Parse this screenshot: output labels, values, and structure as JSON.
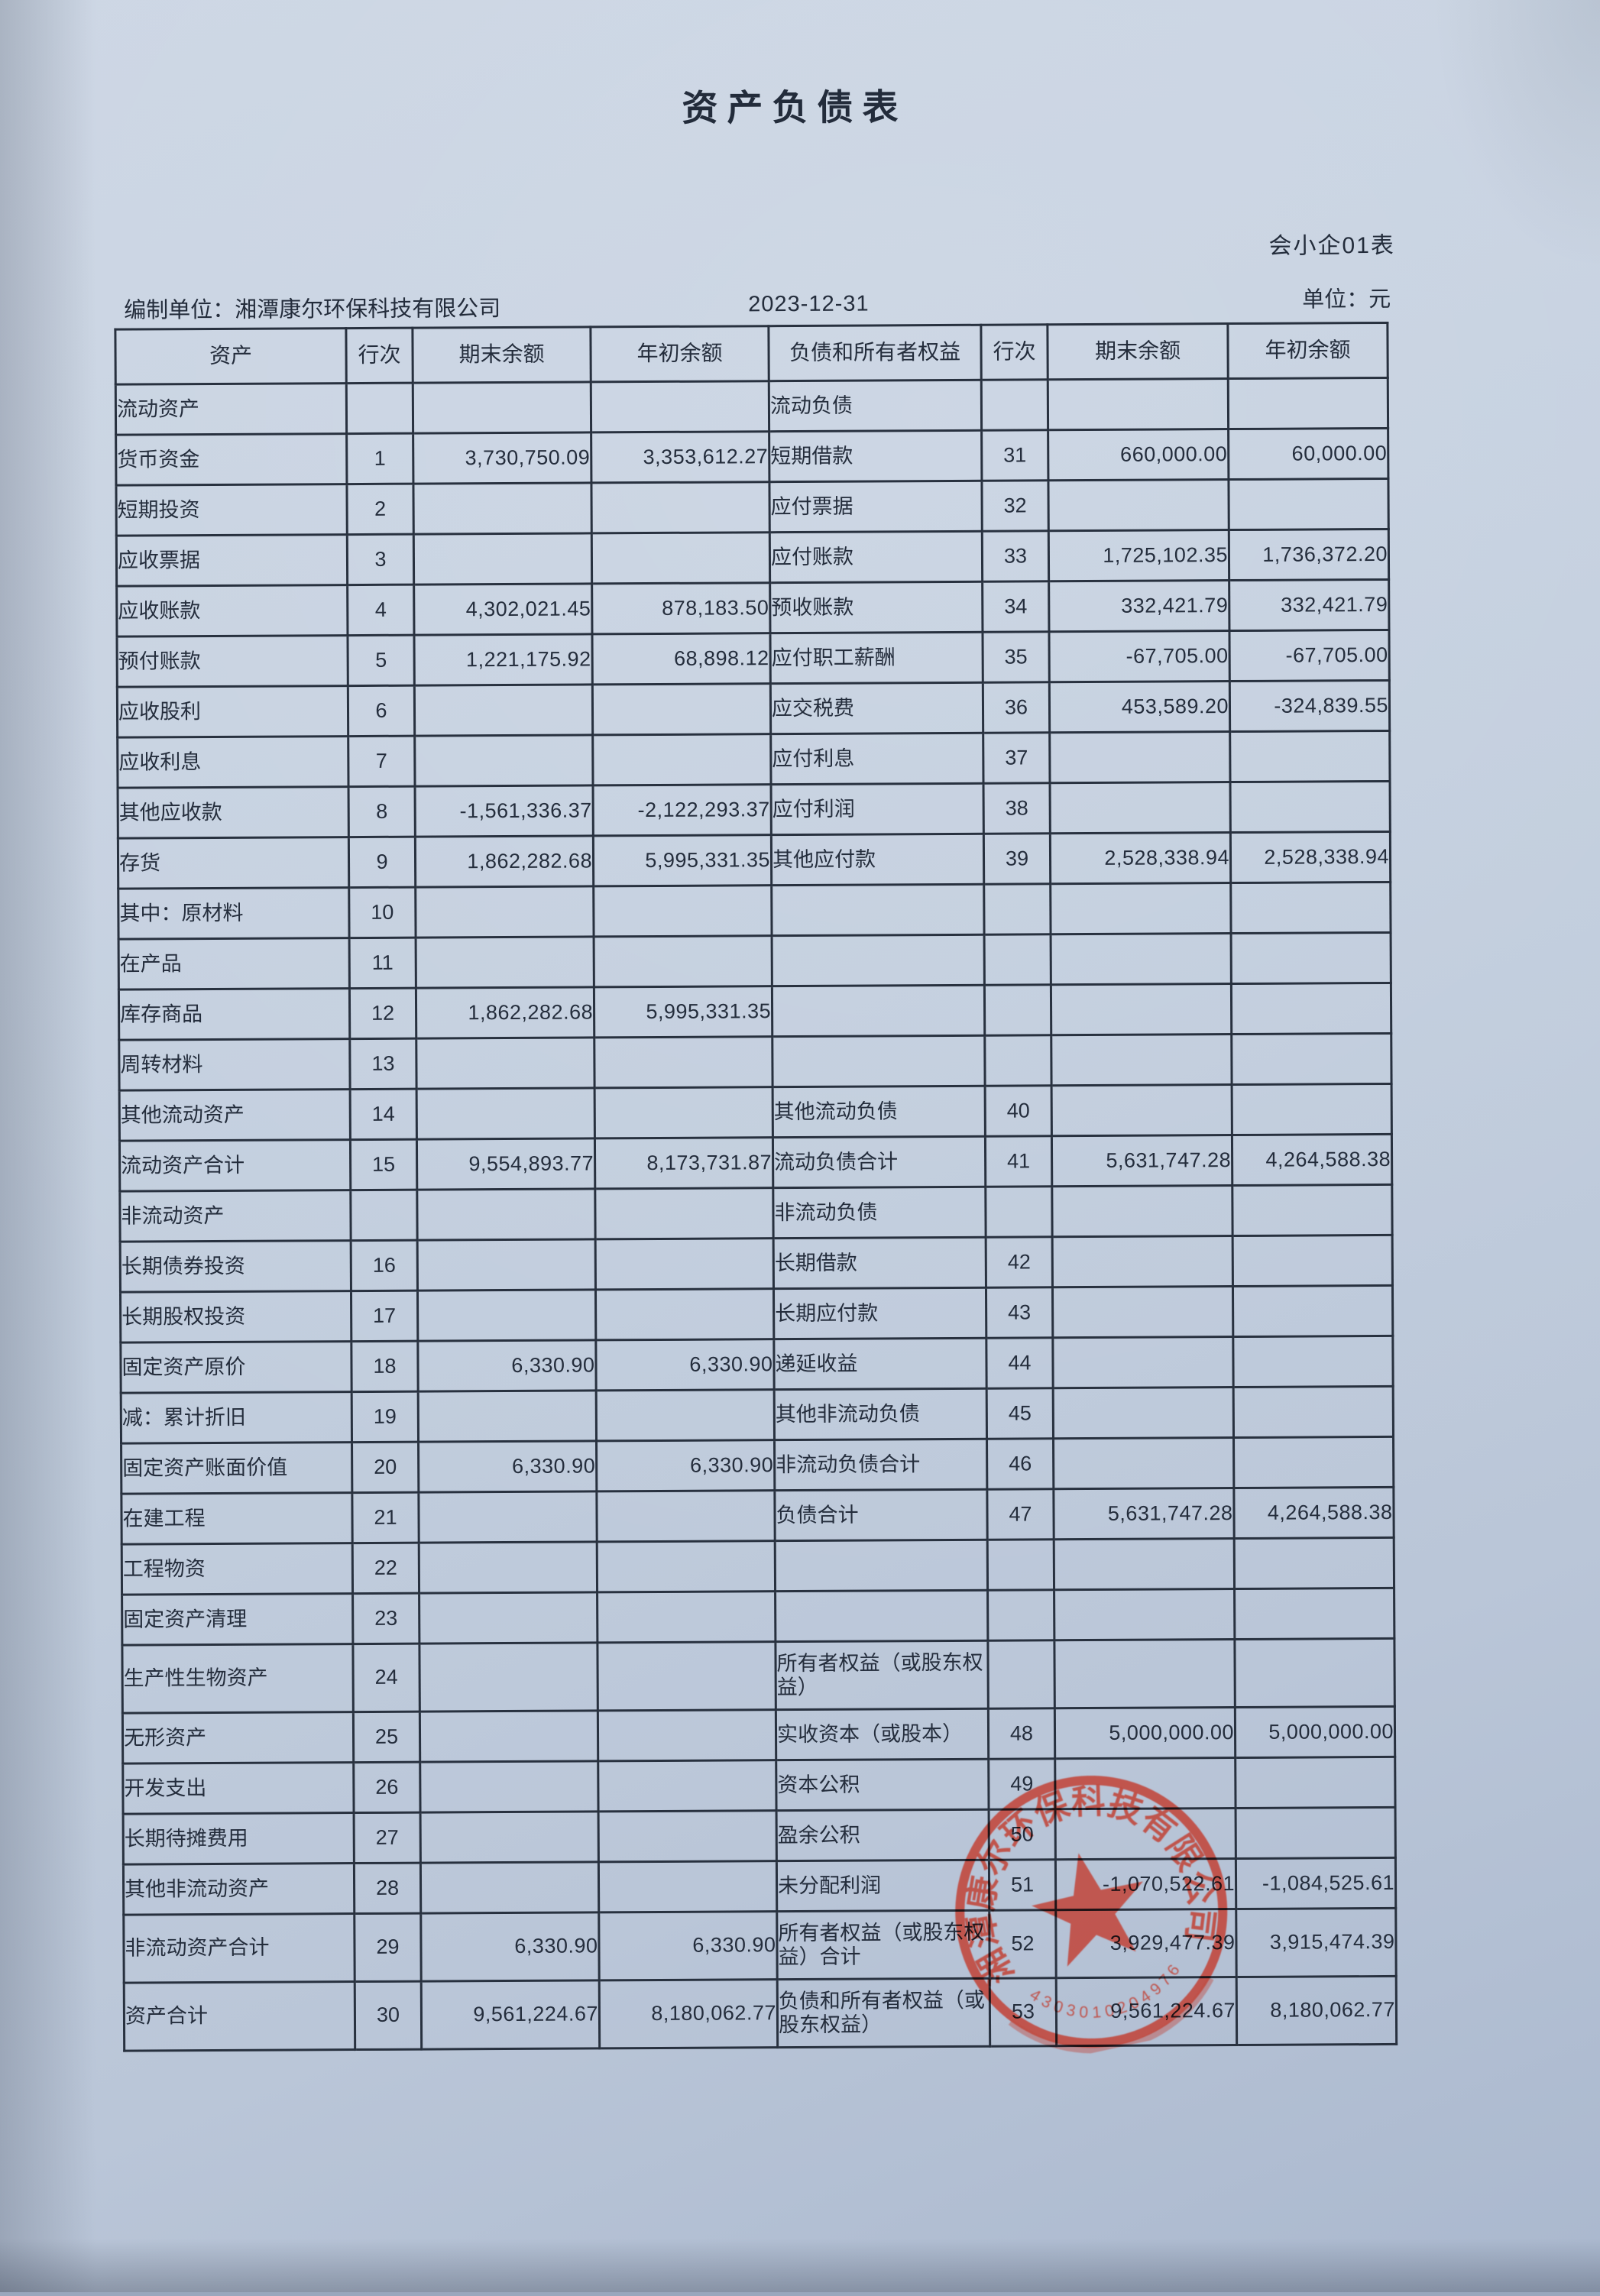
{
  "page": {
    "title": "资产负债表",
    "form_code": "会小企01表",
    "prepared_by": "编制单位：湘潭康尔环保科技有限公司",
    "date": "2023-12-31",
    "unit": "单位：元"
  },
  "colors": {
    "paper": "#c4cfdf",
    "ink": "#242d3c",
    "stamp_red": "#c23a2c"
  },
  "table": {
    "headers": [
      "资产",
      "行次",
      "期末余额",
      "年初余额",
      "负债和所有者权益",
      "行次",
      "期末余额",
      "年初余额"
    ],
    "rows": [
      {
        "al": "流动资产",
        "ai": 0,
        "ll": "流动负债",
        "li": 0
      },
      {
        "al": "货币资金",
        "ai": 1,
        "an": "1",
        "ae": "3,730,750.09",
        "ab": "3,353,612.27",
        "ll": "短期借款",
        "li": 1,
        "ln": "31",
        "le": "660,000.00",
        "lb": "60,000.00"
      },
      {
        "al": "短期投资",
        "ai": 1,
        "an": "2",
        "ll": "应付票据",
        "li": 1,
        "ln": "32"
      },
      {
        "al": "应收票据",
        "ai": 1,
        "an": "3",
        "ll": "应付账款",
        "li": 1,
        "ln": "33",
        "le": "1,725,102.35",
        "lb": "1,736,372.20"
      },
      {
        "al": "应收账款",
        "ai": 1,
        "an": "4",
        "ae": "4,302,021.45",
        "ab": "878,183.50",
        "ll": "预收账款",
        "li": 1,
        "ln": "34",
        "le": "332,421.79",
        "lb": "332,421.79"
      },
      {
        "al": "预付账款",
        "ai": 1,
        "an": "5",
        "ae": "1,221,175.92",
        "ab": "68,898.12",
        "ll": "应付职工薪酬",
        "li": 1,
        "ln": "35",
        "le": "-67,705.00",
        "lb": "-67,705.00"
      },
      {
        "al": "应收股利",
        "ai": 1,
        "an": "6",
        "ll": "应交税费",
        "li": 1,
        "ln": "36",
        "le": "453,589.20",
        "lb": "-324,839.55"
      },
      {
        "al": "应收利息",
        "ai": 1,
        "an": "7",
        "ll": "应付利息",
        "li": 1,
        "ln": "37"
      },
      {
        "al": "其他应收款",
        "ai": 1,
        "an": "8",
        "ae": "-1,561,336.37",
        "ab": "-2,122,293.37",
        "ll": "应付利润",
        "li": 1,
        "ln": "38"
      },
      {
        "al": "存货",
        "ai": 1,
        "an": "9",
        "ae": "1,862,282.68",
        "ab": "5,995,331.35",
        "ll": "其他应付款",
        "li": 1,
        "ln": "39",
        "le": "2,528,338.94",
        "lb": "2,528,338.94"
      },
      {
        "al": "其中：原材料",
        "ai": 2,
        "an": "10"
      },
      {
        "al": "在产品",
        "ai": 2,
        "an": "11"
      },
      {
        "al": "库存商品",
        "ai": 2,
        "an": "12",
        "ae": "1,862,282.68",
        "ab": "5,995,331.35"
      },
      {
        "al": "周转材料",
        "ai": 2,
        "an": "13"
      },
      {
        "al": "其他流动资产",
        "ai": 1,
        "an": "14",
        "ll": "其他流动负债",
        "li": 1,
        "ln": "40"
      },
      {
        "al": "流动资产合计",
        "ai": 1,
        "an": "15",
        "ae": "9,554,893.77",
        "ab": "8,173,731.87",
        "ll": "流动负债合计",
        "li": 1,
        "ln": "41",
        "le": "5,631,747.28",
        "lb": "4,264,588.38"
      },
      {
        "al": "非流动资产",
        "ai": 0,
        "ll": "非流动负债",
        "li": 0
      },
      {
        "al": "长期债券投资",
        "ai": 1,
        "an": "16",
        "ll": "长期借款",
        "li": 1,
        "ln": "42"
      },
      {
        "al": "长期股权投资",
        "ai": 1,
        "an": "17",
        "ll": "长期应付款",
        "li": 1,
        "ln": "43"
      },
      {
        "al": "固定资产原价",
        "ai": 1,
        "an": "18",
        "ae": "6,330.90",
        "ab": "6,330.90",
        "ll": "递延收益",
        "li": 1,
        "ln": "44"
      },
      {
        "al": "减：累计折旧",
        "ai": 0,
        "an": "19",
        "ll": "其他非流动负债",
        "li": 1,
        "ln": "45"
      },
      {
        "al": "固定资产账面价值",
        "ai": 1,
        "an": "20",
        "ae": "6,330.90",
        "ab": "6,330.90",
        "ll": "非流动负债合计",
        "li": 1,
        "ln": "46"
      },
      {
        "al": "在建工程",
        "ai": 1,
        "an": "21",
        "ll": "负债合计",
        "li": 0,
        "ln": "47",
        "le": "5,631,747.28",
        "lb": "4,264,588.38"
      },
      {
        "al": "工程物资",
        "ai": 1,
        "an": "22"
      },
      {
        "al": "固定资产清理",
        "ai": 1,
        "an": "23"
      },
      {
        "al": "生产性生物资产",
        "ai": 1,
        "an": "24",
        "ll": "所有者权益（或股东权益）",
        "li": 0,
        "tall": true
      },
      {
        "al": "无形资产",
        "ai": 1,
        "an": "25",
        "ll": "实收资本（或股本）",
        "li": 1,
        "ln": "48",
        "le": "5,000,000.00",
        "lb": "5,000,000.00"
      },
      {
        "al": "开发支出",
        "ai": 1,
        "an": "26",
        "ll": "资本公积",
        "li": 1,
        "ln": "49"
      },
      {
        "al": "长期待摊费用",
        "ai": 1,
        "an": "27",
        "ll": "盈余公积",
        "li": 1,
        "ln": "50"
      },
      {
        "al": "其他非流动资产",
        "ai": 1,
        "an": "28",
        "ll": "未分配利润",
        "li": 1,
        "ln": "51",
        "le": "-1,070,522.61",
        "lb": "-1,084,525.61"
      },
      {
        "al": "非流动资产合计",
        "ai": 1,
        "an": "29",
        "ae": "6,330.90",
        "ab": "6,330.90",
        "ll": "所有者权益（或股东权益）合计",
        "li": 1,
        "ln": "52",
        "le": "3,929,477.39",
        "lb": "3,915,474.39",
        "tall": true
      },
      {
        "al": "资产合计",
        "ai": 0,
        "an": "30",
        "ae": "9,561,224.67",
        "ab": "8,180,062.77",
        "ll": "负债和所有者权益（或股东权益）",
        "li": 0,
        "ln": "53",
        "le": "9,561,224.67",
        "lb": "8,180,062.77",
        "tall": true
      }
    ]
  },
  "stamp": {
    "company": "湘潭康尔环保科技有限公司",
    "serial": "4303010204976"
  }
}
